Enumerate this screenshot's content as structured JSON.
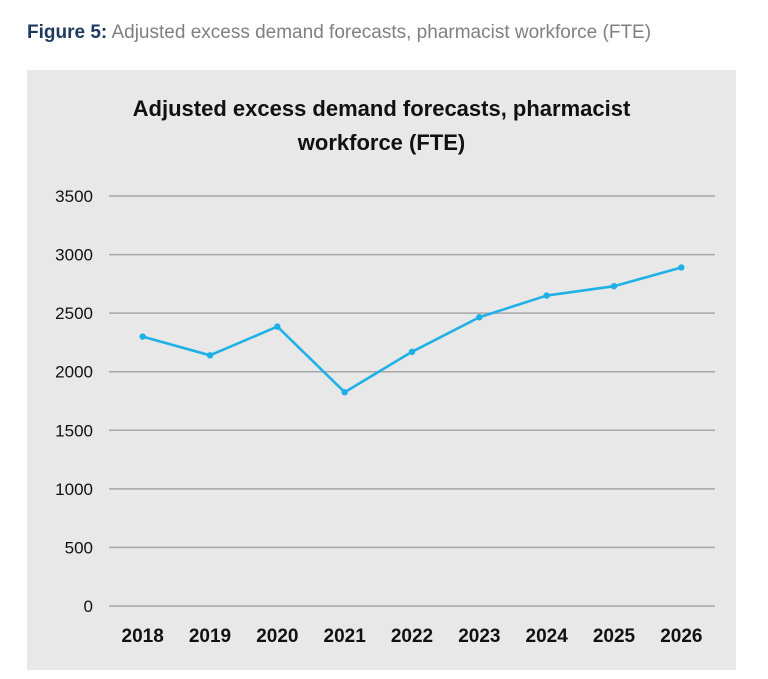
{
  "caption": {
    "label": "Figure 5:",
    "text": "Adjusted excess demand forecasts, pharmacist workforce (FTE)"
  },
  "chart_data": {
    "type": "line",
    "title_lines": [
      "Adjusted excess demand forecasts, pharmacist",
      "workforce (FTE)"
    ],
    "categories": [
      "2018",
      "2019",
      "2020",
      "2021",
      "2022",
      "2023",
      "2024",
      "2025",
      "2026"
    ],
    "series": [
      {
        "values": [
          2300,
          2140,
          2385,
          1825,
          2170,
          2465,
          2650,
          2730,
          2890
        ],
        "color": "#1fb1e6"
      }
    ],
    "yticks": [
      0,
      500,
      1000,
      1500,
      2000,
      2500,
      3000,
      3500
    ],
    "ylim": [
      0,
      3500
    ],
    "grid": true,
    "legend": "none"
  }
}
